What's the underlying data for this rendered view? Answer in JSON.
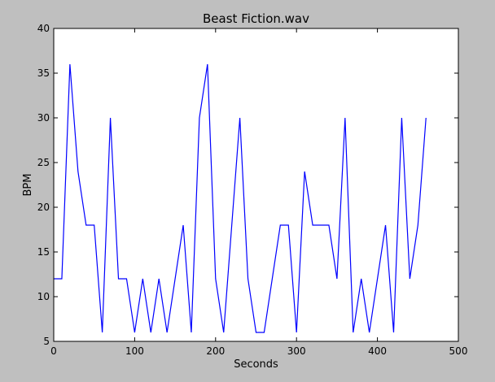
{
  "chart_data": {
    "type": "line",
    "title": "Beast Fiction.wav",
    "xlabel": "Seconds",
    "ylabel": "BPM",
    "xlim": [
      0,
      500
    ],
    "ylim": [
      5,
      40
    ],
    "xticks": [
      0,
      100,
      200,
      300,
      400,
      500
    ],
    "yticks": [
      5,
      10,
      15,
      20,
      25,
      30,
      35,
      40
    ],
    "grid": false,
    "colors": {
      "line": "#0000ff",
      "figure_background": "#bfbfbf",
      "axes_background": "#ffffff"
    },
    "series": [
      {
        "x": [
          0,
          10,
          20,
          30,
          40,
          50,
          60,
          70,
          80,
          90,
          100,
          110,
          120,
          130,
          140,
          150,
          160,
          170,
          180,
          190,
          200,
          210,
          220,
          230,
          240,
          250,
          260,
          270,
          280,
          290,
          300,
          310,
          320,
          330,
          340,
          350,
          360,
          370,
          380,
          390,
          400,
          410,
          420,
          430,
          440,
          450,
          460
        ],
        "y": [
          12,
          12,
          36,
          24,
          18,
          18,
          6,
          30,
          12,
          12,
          6,
          12,
          6,
          12,
          6,
          12,
          18,
          6,
          30,
          36,
          12,
          6,
          18,
          30,
          12,
          6,
          6,
          12,
          18,
          18,
          6,
          24,
          18,
          18,
          18,
          12,
          30,
          6,
          12,
          6,
          12,
          18,
          6,
          30,
          12,
          18,
          30
        ]
      }
    ]
  }
}
